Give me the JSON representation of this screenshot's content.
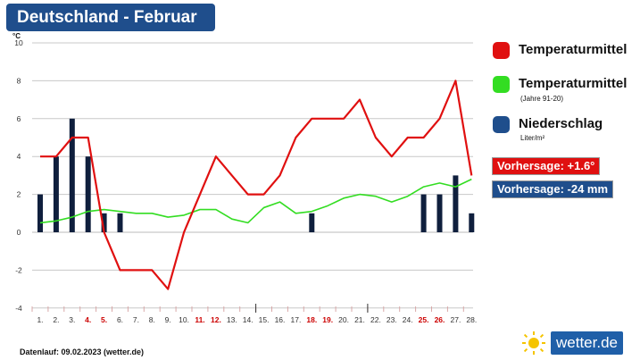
{
  "title": "Deutschland - Februar",
  "footer": "Datenlauf: 09.02.2023 (wetter.de)",
  "logo_text": "wetter.de",
  "legend": {
    "temp": "Temperaturmittel",
    "normal": "Temperaturmittel",
    "normal_sub": "(Jahre 91-20)",
    "precip": "Niederschlag",
    "precip_unit": "Liter/m²"
  },
  "forecast_temp": "Vorhersage: +1.6°",
  "forecast_precip": "Vorhersage: -24 mm",
  "colors": {
    "temp": "#e01010",
    "normal": "#33dd22",
    "precip": "#0f1f3d",
    "precip_legend": "#1f4e8c",
    "weekend": "#cc0000",
    "title_bg": "#1f4e8c"
  },
  "chart_data": {
    "type": "line",
    "ylabel": "°C",
    "ylim": [
      -4,
      10
    ],
    "yticks": [
      -4,
      -2,
      0,
      2,
      4,
      6,
      8,
      10
    ],
    "categories": [
      "1.",
      "2.",
      "3.",
      "4.",
      "5.",
      "6.",
      "7.",
      "8.",
      "9.",
      "10.",
      "11.",
      "12.",
      "13.",
      "14.",
      "15.",
      "16.",
      "17.",
      "18.",
      "19.",
      "20.",
      "21.",
      "22.",
      "23.",
      "24.",
      "25.",
      "26.",
      "27.",
      "28."
    ],
    "weekend_days": [
      4,
      5,
      11,
      12,
      18,
      19,
      25,
      26
    ],
    "series": [
      {
        "name": "Temperaturmittel",
        "kind": "line",
        "values": [
          4,
          4,
          5,
          5,
          0,
          -2,
          -2,
          -2,
          -3,
          0,
          2,
          4,
          3,
          2,
          2,
          3,
          5,
          6,
          6,
          6,
          7,
          5,
          4,
          5,
          5,
          6,
          8,
          3
        ]
      },
      {
        "name": "Temperaturmittel (Jahre 91-20)",
        "kind": "line",
        "values": [
          0.5,
          0.6,
          0.8,
          1.1,
          1.2,
          1.1,
          1.0,
          1.0,
          0.8,
          0.9,
          1.2,
          1.2,
          0.7,
          0.5,
          1.3,
          1.6,
          1.0,
          1.1,
          1.4,
          1.8,
          2.0,
          1.9,
          1.6,
          1.9,
          2.4,
          2.6,
          2.4,
          2.8
        ]
      },
      {
        "name": "Niederschlag",
        "kind": "bar",
        "values": [
          2,
          4,
          6,
          4,
          1,
          1,
          0,
          0,
          0,
          0,
          0,
          0,
          0,
          0,
          0,
          0,
          0,
          1,
          0,
          0,
          0,
          0,
          0,
          0,
          2,
          2,
          3,
          1
        ]
      }
    ]
  }
}
